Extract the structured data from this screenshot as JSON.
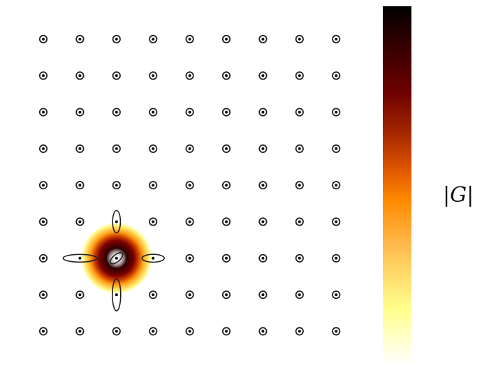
{
  "figure": {
    "grid": {
      "rows": 9,
      "cols": 9
    },
    "hotspot": {
      "row": 6,
      "col": 2
    },
    "deformed": [
      {
        "row": 6,
        "col": 2,
        "shape": "tilted-ellipse",
        "ratio": 0.35
      },
      {
        "row": 5,
        "col": 2,
        "shape": "vertical-ellipse",
        "ratio": 0.35
      },
      {
        "row": 7,
        "col": 2,
        "shape": "vertical-ellipse",
        "ratio": 0.26
      },
      {
        "row": 6,
        "col": 1,
        "shape": "horizontal-ellipse",
        "ratio": 0.23
      },
      {
        "row": 6,
        "col": 3,
        "shape": "horizontal-ellipse",
        "ratio": 0.35
      }
    ],
    "colormap": [
      "#000000",
      "#3a0000",
      "#6e0000",
      "#a82a00",
      "#e25a00",
      "#ff8a00",
      "#ffb84a",
      "#ffe070",
      "#ffff8a",
      "#ffffd0",
      "#ffffff"
    ],
    "colorbar": {
      "label": "|G|"
    }
  }
}
